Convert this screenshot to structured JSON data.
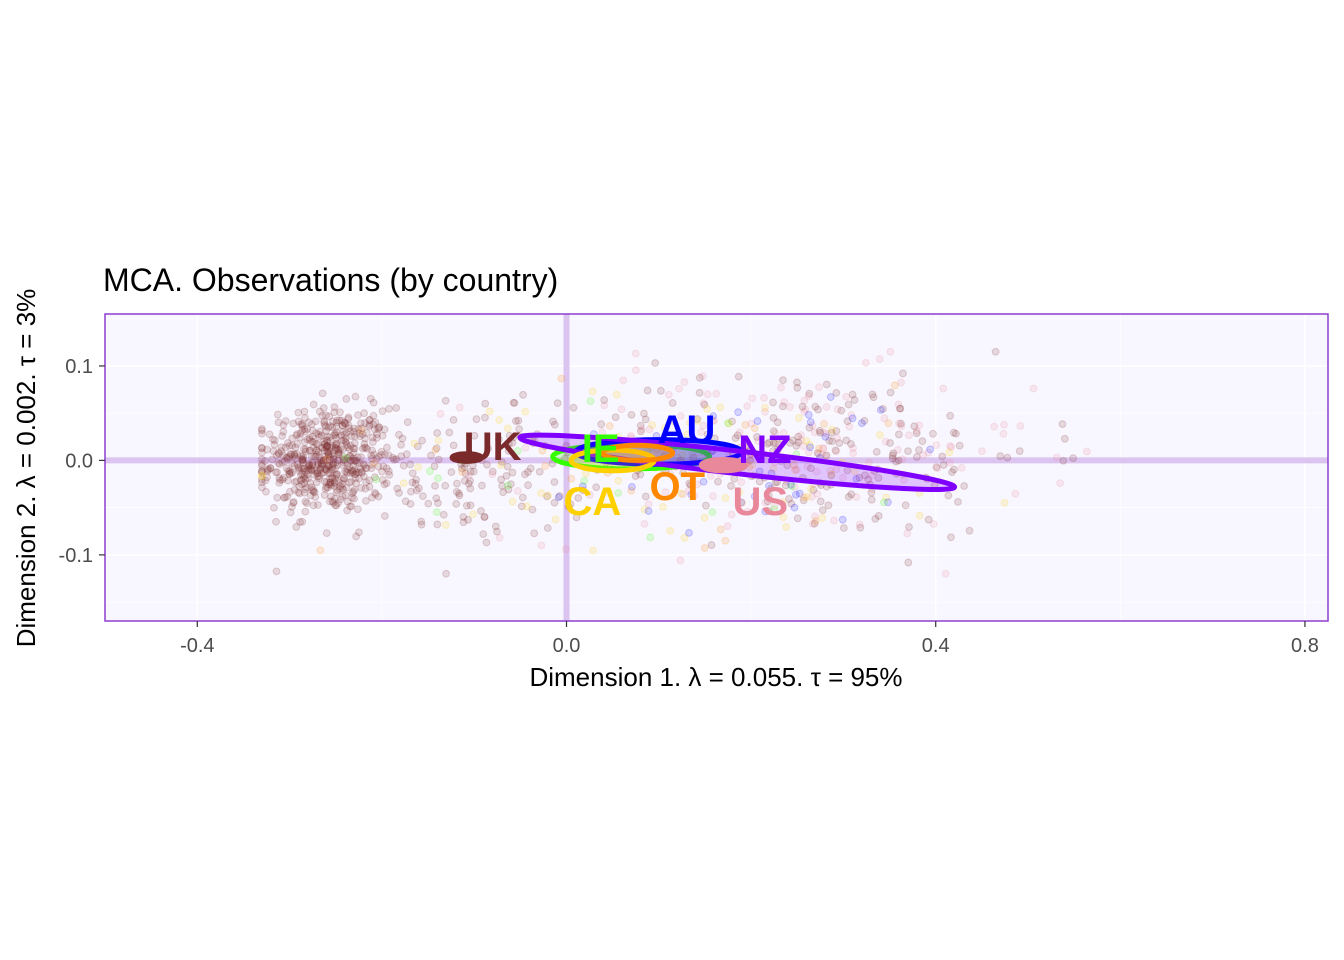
{
  "chart_data": {
    "type": "scatter",
    "title": "MCA. Observations (by country)",
    "xlabel": "Dimension 1.   λ = 0.055.  τ = 95%",
    "ylabel": "Dimension 2.   λ = 0.002.  τ = 3%",
    "xlim": [
      -0.5,
      0.825
    ],
    "ylim": [
      -0.17,
      0.155
    ],
    "x_ticks": [
      -0.4,
      0.0,
      0.4,
      0.8
    ],
    "x_tick_labels": [
      "-0.4",
      "0.0",
      "0.4",
      "0.8"
    ],
    "y_ticks": [
      0.1,
      0.0,
      -0.1
    ],
    "y_tick_labels": [
      "0.1",
      "0.0",
      "-0.1"
    ],
    "grid": true,
    "panel_background": "#f8f6fe",
    "panel_border_color": "#8e3fd0",
    "reference_line_color": "#dcc4f0",
    "point_opacity": 0.15,
    "groups": [
      {
        "label": "UK",
        "color": "#7a2a2a",
        "label_pos": [
          -0.08,
          0.015
        ],
        "ellipse": {
          "cx": -0.108,
          "cy": 0.003,
          "rx": 0.016,
          "ry": 0.004,
          "angle_deg": 0,
          "filled": true
        }
      },
      {
        "label": "IE",
        "color": "#33ff00",
        "label_pos": [
          0.037,
          0.013
        ],
        "ellipse": {
          "cx": 0.07,
          "cy": 0.004,
          "rx": 0.085,
          "ry": 0.013,
          "angle_deg": 0,
          "filled": false
        }
      },
      {
        "label": "AU",
        "color": "#0000ff",
        "label_pos": [
          0.13,
          0.033
        ],
        "ellipse": {
          "cx": 0.1,
          "cy": 0.009,
          "rx": 0.09,
          "ry": 0.013,
          "angle_deg": 0,
          "filled": false
        }
      },
      {
        "label": "NZ",
        "color": "#8000ff",
        "label_pos": [
          0.215,
          0.012
        ],
        "ellipse": {
          "cx": 0.185,
          "cy": -0.002,
          "rx": 0.237,
          "ry": 0.012,
          "angle_deg": -6.5,
          "filled": false
        }
      },
      {
        "label": "CA",
        "color": "#ffd000",
        "label_pos": [
          0.028,
          -0.043
        ],
        "ellipse": {
          "cx": 0.05,
          "cy": 0.0,
          "rx": 0.045,
          "ry": 0.011,
          "angle_deg": 0,
          "filled": false
        }
      },
      {
        "label": "OT",
        "color": "#ff8800",
        "label_pos": [
          0.12,
          -0.027
        ],
        "ellipse": {
          "cx": 0.077,
          "cy": 0.008,
          "rx": 0.038,
          "ry": 0.008,
          "angle_deg": 0,
          "filled": false
        }
      },
      {
        "label": "US",
        "color": "#e8889a",
        "label_pos": [
          0.21,
          -0.043
        ],
        "ellipse": {
          "cx": 0.17,
          "cy": -0.005,
          "rx": 0.024,
          "ry": 0.006,
          "angle_deg": 0,
          "filled": true
        }
      }
    ],
    "point_clusters": [
      {
        "color": "#7a2a2a",
        "count": 520,
        "x_mean": -0.26,
        "x_sd": 0.035,
        "y_mean": 0.0,
        "y_sd": 0.028
      },
      {
        "color": "#7a2a2a",
        "count": 140,
        "x_mean": -0.1,
        "x_sd": 0.06,
        "y_mean": -0.01,
        "y_sd": 0.035
      },
      {
        "color": "#e8889a",
        "count": 170,
        "x_mean": 0.22,
        "x_sd": 0.14,
        "y_mean": 0.005,
        "y_sd": 0.045
      },
      {
        "color": "#7a2a2a",
        "count": 210,
        "x_mean": 0.25,
        "x_sd": 0.13,
        "y_mean": 0.01,
        "y_sd": 0.045
      },
      {
        "color": "#ffd000",
        "count": 70,
        "x_mean": 0.15,
        "x_sd": 0.2,
        "y_mean": -0.01,
        "y_sd": 0.04
      },
      {
        "color": "#0000ff",
        "count": 40,
        "x_mean": 0.2,
        "x_sd": 0.12,
        "y_mean": 0.0,
        "y_sd": 0.04
      },
      {
        "color": "#33ff00",
        "count": 20,
        "x_mean": 0.1,
        "x_sd": 0.15,
        "y_mean": 0.0,
        "y_sd": 0.04
      },
      {
        "color": "#ff8800",
        "count": 35,
        "x_mean": 0.1,
        "x_sd": 0.18,
        "y_mean": 0.0,
        "y_sd": 0.04
      }
    ]
  }
}
